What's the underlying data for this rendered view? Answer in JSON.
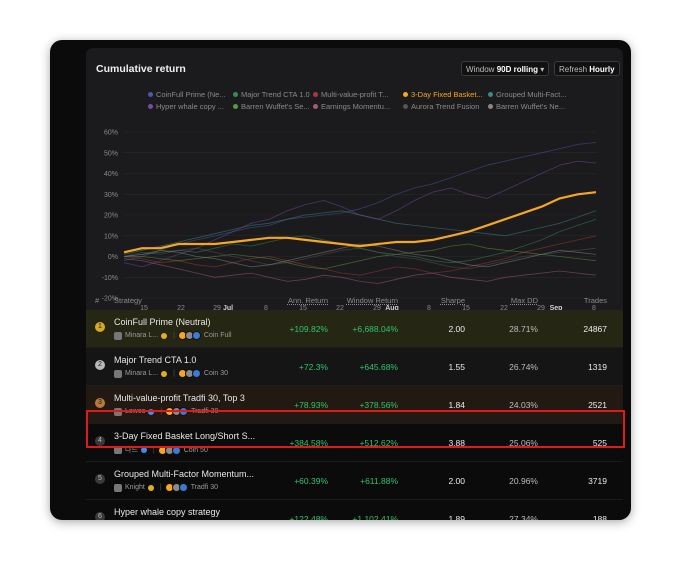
{
  "card": {
    "title": "Cumulative return",
    "window_label": "Window",
    "window_value": "90D rolling",
    "window_caret": "▾",
    "refresh_label": "Refresh",
    "refresh_value": "Hourly"
  },
  "legend": [
    {
      "name": "CoinFull Prime (Ne...",
      "color": "#4a5aa8"
    },
    {
      "name": "Major Trend CTA 1.0",
      "color": "#3a8a55"
    },
    {
      "name": "Multi-value-profit T...",
      "color": "#a83a3a"
    },
    {
      "name": "3-Day Fixed Basket...",
      "color": "#f5a623"
    },
    {
      "name": "Grouped Multi-Fact...",
      "color": "#3a8a8a"
    },
    {
      "name": "Hyper whale copy ...",
      "color": "#7a4aa8"
    },
    {
      "name": "Barren Wuffet's Se...",
      "color": "#5a9a3a"
    },
    {
      "name": "Earnings Momentu...",
      "color": "#a85a7a"
    },
    {
      "name": "Aurora Trend Fusion",
      "color": "#555555"
    },
    {
      "name": "Barren Wuffet's Ne...",
      "color": "#888888"
    }
  ],
  "chart_data": {
    "type": "line",
    "title": "Cumulative return",
    "y_unit": "%",
    "ylim": [
      -20,
      60
    ],
    "yticks": [
      "60%",
      "50%",
      "40%",
      "30%",
      "20%",
      "10%",
      "0%",
      "-10%",
      "-20%"
    ],
    "xticks": [
      {
        "label": "15",
        "bold": false
      },
      {
        "label": "22",
        "bold": false
      },
      {
        "label": "29",
        "bold": false
      },
      {
        "label": "Jul",
        "bold": true
      },
      {
        "label": "8",
        "bold": false
      },
      {
        "label": "15",
        "bold": false
      },
      {
        "label": "22",
        "bold": false
      },
      {
        "label": "29",
        "bold": false
      },
      {
        "label": "Aug",
        "bold": true
      },
      {
        "label": "8",
        "bold": false
      },
      {
        "label": "15",
        "bold": false
      },
      {
        "label": "22",
        "bold": false
      },
      {
        "label": "29",
        "bold": false
      },
      {
        "label": "Sep",
        "bold": true
      },
      {
        "label": "8",
        "bold": false
      }
    ],
    "grid": true,
    "highlight_series": "3-Day Fixed Basket...",
    "series": [
      {
        "name": "3-Day Fixed Basket...",
        "color": "#f5a623",
        "highlight": true,
        "values": [
          2,
          4,
          4,
          6,
          6,
          6,
          7,
          8,
          9,
          9,
          8,
          7,
          6,
          5,
          6,
          7,
          7,
          8,
          10,
          12,
          15,
          18,
          21,
          24,
          28,
          30,
          31
        ]
      },
      {
        "name": "CoinFull Prime (Ne...",
        "color": "#4a5aa8",
        "values": [
          -2,
          0,
          3,
          6,
          8,
          10,
          12,
          14,
          15,
          18,
          19,
          20,
          21,
          23,
          26,
          30,
          33,
          35,
          38,
          41,
          44,
          46,
          48,
          50,
          52,
          54,
          55
        ]
      },
      {
        "name": "Major Trend CTA 1.0",
        "color": "#3a8a55",
        "values": [
          0,
          1,
          2,
          3,
          2,
          4,
          6,
          5,
          7,
          9,
          10,
          8,
          6,
          4,
          2,
          1,
          0,
          -2,
          -3,
          -2,
          0,
          2,
          5,
          8,
          12,
          15,
          18
        ]
      },
      {
        "name": "Multi-value-profit T...",
        "color": "#a83a3a",
        "values": [
          0,
          -1,
          -3,
          -2,
          -4,
          -5,
          -3,
          -1,
          0,
          -2,
          -4,
          -6,
          -8,
          -9,
          -7,
          -5,
          -6,
          -8,
          -7,
          -5,
          -3,
          -1,
          2,
          4,
          6,
          8,
          10
        ]
      },
      {
        "name": "Grouped Multi-Fact...",
        "color": "#3a8a8a",
        "values": [
          1,
          3,
          5,
          7,
          9,
          11,
          13,
          15,
          16,
          18,
          20,
          21,
          22,
          20,
          18,
          16,
          15,
          14,
          13,
          12,
          11,
          10,
          12,
          14,
          16,
          19,
          22
        ]
      },
      {
        "name": "Hyper whale copy ...",
        "color": "#7a4aa8",
        "values": [
          -3,
          -5,
          -2,
          1,
          4,
          8,
          12,
          16,
          18,
          22,
          25,
          27,
          24,
          20,
          18,
          22,
          27,
          31,
          33,
          30,
          28,
          32,
          36,
          40,
          44,
          46,
          45
        ]
      },
      {
        "name": "Barren Wuffet's Se...",
        "color": "#5a9a3a",
        "values": [
          0,
          0,
          -1,
          -2,
          -1,
          0,
          1,
          0,
          -1,
          -3,
          -5,
          -6,
          -4,
          -2,
          0,
          1,
          2,
          3,
          5,
          6,
          4,
          3,
          2,
          1,
          0,
          -1,
          -2
        ]
      },
      {
        "name": "Earnings Momentu...",
        "color": "#a85a7a",
        "values": [
          -1,
          -2,
          -4,
          -6,
          -8,
          -10,
          -9,
          -8,
          -10,
          -12,
          -11,
          -9,
          -10,
          -12,
          -13,
          -11,
          -9,
          -8,
          -10,
          -11,
          -12,
          -10,
          -9,
          -8,
          -7,
          -8,
          -9
        ]
      },
      {
        "name": "Aurora Trend Fusion",
        "color": "#555555",
        "values": [
          0,
          2,
          1,
          3,
          4,
          2,
          0,
          -2,
          -4,
          -3,
          -1,
          1,
          3,
          4,
          2,
          0,
          -1,
          -3,
          -5,
          -6,
          -4,
          -2,
          0,
          1,
          2,
          3,
          4
        ]
      },
      {
        "name": "Barren Wuffet's Ne...",
        "color": "#888888",
        "values": [
          0,
          1,
          3,
          2,
          0,
          -1,
          -3,
          -5,
          -4,
          -2,
          0,
          2,
          4,
          6,
          5,
          3,
          1,
          0,
          -2,
          -4,
          -5,
          -3,
          -1,
          1,
          3,
          2,
          1
        ]
      }
    ]
  },
  "table": {
    "headers": {
      "rank": "#",
      "strategy": "Strategy",
      "ann": "Ann. Return",
      "window": "Window Return",
      "sharpe": "Sharpe",
      "maxdd": "Max DD",
      "trades": "Trades"
    },
    "rows": [
      {
        "rank": "1",
        "name": "CoinFull Prime (Neutral)",
        "owner": "Minara L...",
        "account": "Coin Full",
        "ann": "+109.82%",
        "window": "+6,688.04%",
        "sharpe": "2.00",
        "maxdd": "28.71%",
        "trades": "24867",
        "bg": "#262614",
        "rank_bg": "#d4a82a"
      },
      {
        "rank": "2",
        "name": "Major Trend CTA 1.0",
        "owner": "Minara L...",
        "account": "Coin 30",
        "ann": "+72.3%",
        "window": "+645.68%",
        "sharpe": "1.55",
        "maxdd": "26.74%",
        "trades": "1319",
        "bg": "#151516",
        "rank_bg": "#b8b8b8"
      },
      {
        "rank": "3",
        "name": "Multi-value-profit Tradfi 30, Top 3",
        "owner": "Lowes",
        "account": "Tradfi 30",
        "ann": "+78.93%",
        "window": "+378.56%",
        "sharpe": "1.84",
        "maxdd": "24.03%",
        "trades": "2521",
        "bg": "#221a12",
        "rank_bg": "#b87a3a"
      },
      {
        "rank": "4",
        "name": "3-Day Fixed Basket Long/Short S...",
        "owner": "나드",
        "account": "Coin 50",
        "ann": "+384.58%",
        "window": "+512.62%",
        "sharpe": "3.88",
        "maxdd": "25.06%",
        "trades": "525",
        "bg": "#0b0b0c",
        "rank_bg": "#3a3a3c"
      },
      {
        "rank": "5",
        "name": "Grouped Multi-Factor Momentum...",
        "owner": "Knight",
        "account": "Tradfi 30",
        "ann": "+60.39%",
        "window": "+611.88%",
        "sharpe": "2.00",
        "maxdd": "20.96%",
        "trades": "3719",
        "bg": "#0b0b0c",
        "rank_bg": "#3a3a3c"
      },
      {
        "rank": "6",
        "name": "Hyper whale copy strategy",
        "owner": "Wizard A...",
        "account": "Coin Full",
        "ann": "+122.48%",
        "window": "+1,102.41%",
        "sharpe": "1.89",
        "maxdd": "27.34%",
        "trades": "188",
        "bg": "#0b0b0c",
        "rank_bg": "#3a3a3c"
      }
    ]
  }
}
